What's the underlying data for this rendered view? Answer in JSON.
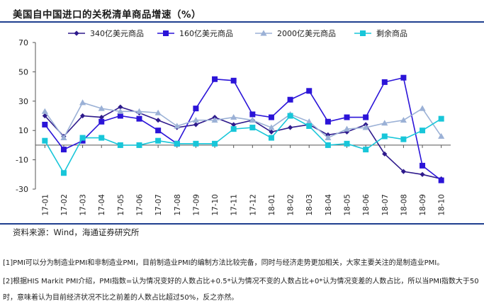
{
  "chart_data": {
    "type": "line",
    "title": "美国自中国进口的关税清单商品增速（%）",
    "xlabel": "",
    "ylabel": "",
    "ylim": [
      -30,
      70
    ],
    "yticks": [
      -30,
      -10,
      10,
      30,
      50,
      70
    ],
    "grid": false,
    "legend": "top",
    "categories": [
      "17-01",
      "17-02",
      "17-03",
      "17-04",
      "17-05",
      "17-06",
      "17-07",
      "17-08",
      "17-09",
      "17-10",
      "17-11",
      "17-12",
      "18-01",
      "18-02",
      "18-03",
      "18-04",
      "18-05",
      "18-06",
      "18-07",
      "18-08",
      "18-09",
      "18-10"
    ],
    "series": [
      {
        "name": "340亿美元商品",
        "color": "#2e1a8c",
        "marker": "diamond",
        "values": [
          20,
          6,
          20,
          19,
          26,
          22,
          17,
          12,
          14,
          19,
          14,
          17,
          9,
          12,
          14,
          7,
          9,
          14,
          -6,
          -18,
          -20,
          -23
        ]
      },
      {
        "name": "160亿美元商品",
        "color": "#2b14d8",
        "marker": "square",
        "values": [
          14,
          -3,
          3,
          16,
          20,
          18,
          10,
          1,
          25,
          45,
          44,
          21,
          19,
          31,
          37,
          16,
          19,
          19,
          43,
          46,
          -14,
          -24
        ]
      },
      {
        "name": "2000亿美元商品",
        "color": "#9bb1d6",
        "marker": "triangle",
        "values": [
          23,
          5,
          29,
          25,
          23,
          23,
          22,
          13,
          17,
          17,
          19,
          17,
          12,
          21,
          16,
          5,
          11,
          12,
          15,
          17,
          25,
          6
        ]
      },
      {
        "name": "剩余商品",
        "color": "#18c6d9",
        "marker": "square",
        "values": [
          3,
          -19,
          5,
          5,
          0,
          0,
          3,
          1,
          1,
          1,
          11,
          12,
          5,
          20,
          13,
          0,
          1,
          -3,
          6,
          4,
          10,
          18
        ]
      }
    ]
  },
  "source": "资料来源：Wind，海通证券研究所",
  "notes": [
    "[1]PMI可以分为制造业PMI和非制造业PMI，目前制造业PMI的编制方法比较完备，同时与经济走势更加相关，大家主要关注的是制造业PMI。",
    "[2]根据HIS Markit PMI介绍，PMI指数=认为情况变好的人数占比+0.5*认为情况不变的人数占比+0*认为情况变差的人数占比，所以当PMI指数大于50时，意味着认为目前经济状况不比之前差的人数占比超过50%，反之亦然。"
  ]
}
